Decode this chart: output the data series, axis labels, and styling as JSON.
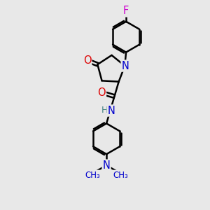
{
  "background_color": "#e8e8e8",
  "atom_color_N": "#0000cc",
  "atom_color_O": "#dd0000",
  "atom_color_F": "#cc00cc",
  "atom_color_H": "#408080",
  "bond_color": "#000000",
  "bond_width": 1.8,
  "figsize": [
    3.0,
    3.0
  ],
  "dpi": 100,
  "xlim": [
    -2.5,
    2.5
  ],
  "ylim": [
    -4.2,
    4.2
  ]
}
